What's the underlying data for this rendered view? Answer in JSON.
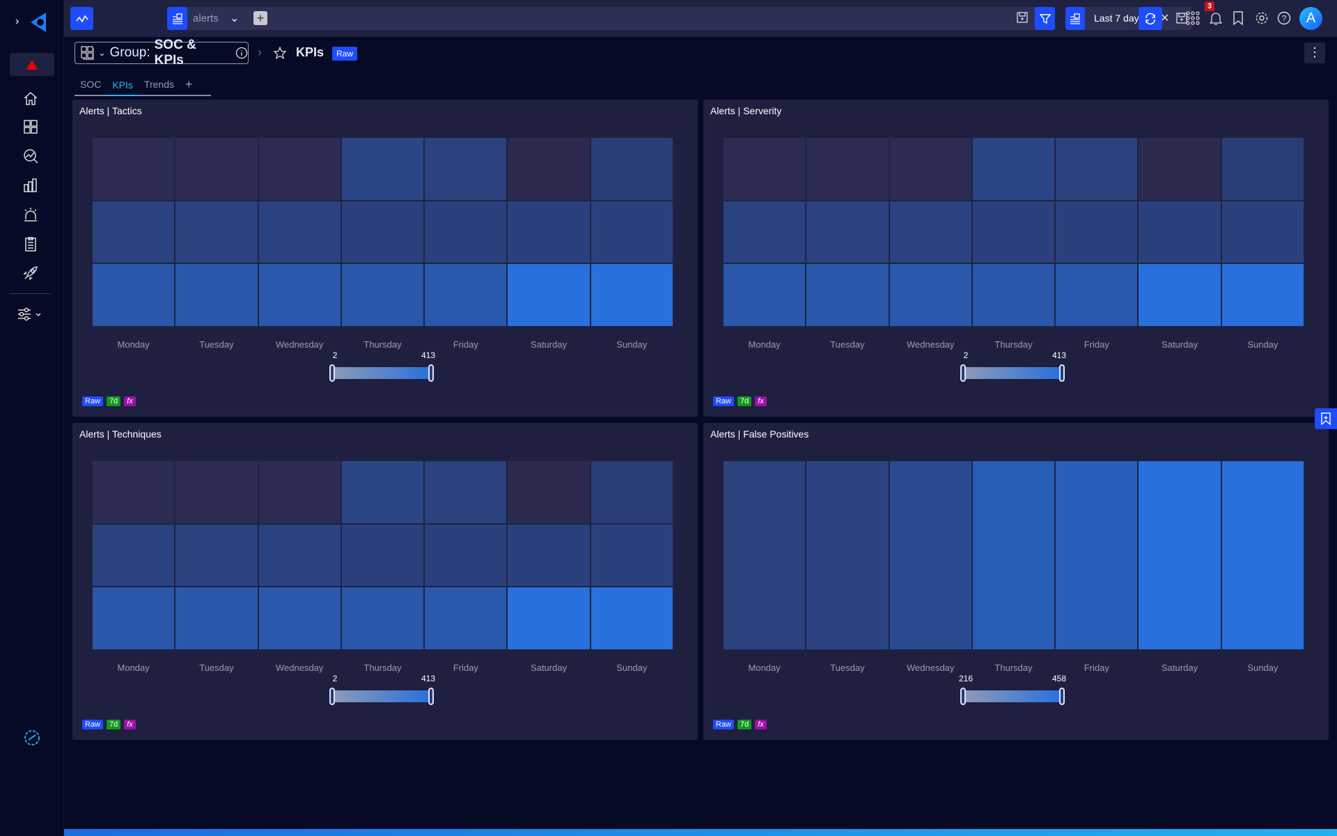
{
  "topbar": {
    "search_value": "alerts",
    "date_range": "Last 7 days",
    "notification_count": "3",
    "avatar_initial": "A"
  },
  "header": {
    "group_prefix": "Group:",
    "group_name": "SOC & KPIs",
    "dashboard_title": "KPIs",
    "badge": "Raw"
  },
  "tabs": [
    {
      "label": "SOC"
    },
    {
      "label": "KPIs",
      "active": true
    },
    {
      "label": "Trends"
    }
  ],
  "add_tab": "+",
  "colors": {
    "accent": "#1e4cff",
    "heat_low": "#2c2a4f",
    "heat_high": "#2870dc",
    "badge_raw": "#1e4cff",
    "badge_7d": "#0f9a1c",
    "badge_fx": "#a010a8",
    "notification": "#c8101a"
  },
  "panel_badges": [
    "Raw",
    "7d",
    "fx"
  ],
  "chart_data": [
    {
      "type": "heatmap",
      "title": "Alerts | Tactics",
      "categories": [
        "Monday",
        "Tuesday",
        "Wednesday",
        "Thursday",
        "Friday",
        "Saturday",
        "Sunday"
      ],
      "rows": [
        [
          8,
          6,
          10,
          150,
          125,
          2,
          100
        ],
        [
          130,
          125,
          128,
          118,
          122,
          124,
          120
        ],
        [
          255,
          258,
          262,
          255,
          265,
          410,
          413
        ]
      ],
      "range": [
        2,
        413
      ]
    },
    {
      "type": "heatmap",
      "title": "Alerts | Serverity",
      "categories": [
        "Monday",
        "Tuesday",
        "Wednesday",
        "Thursday",
        "Friday",
        "Saturday",
        "Sunday"
      ],
      "rows": [
        [
          8,
          6,
          10,
          150,
          125,
          2,
          100
        ],
        [
          130,
          125,
          128,
          118,
          122,
          124,
          120
        ],
        [
          255,
          258,
          262,
          255,
          265,
          410,
          413
        ]
      ],
      "range": [
        2,
        413
      ]
    },
    {
      "type": "heatmap",
      "title": "Alerts | Techniques",
      "categories": [
        "Monday",
        "Tuesday",
        "Wednesday",
        "Thursday",
        "Friday",
        "Saturday",
        "Sunday"
      ],
      "rows": [
        [
          8,
          6,
          10,
          150,
          125,
          2,
          100
        ],
        [
          130,
          125,
          128,
          118,
          122,
          124,
          120
        ],
        [
          255,
          258,
          262,
          255,
          265,
          410,
          413
        ]
      ],
      "range": [
        2,
        413
      ]
    },
    {
      "type": "heatmap",
      "title": "Alerts | False Positives",
      "categories": [
        "Monday",
        "Tuesday",
        "Wednesday",
        "Thursday",
        "Friday",
        "Saturday",
        "Sunday"
      ],
      "rows": [
        [
          216,
          220,
          262,
          362,
          366,
          458,
          455
        ]
      ],
      "range": [
        216,
        458
      ]
    }
  ]
}
